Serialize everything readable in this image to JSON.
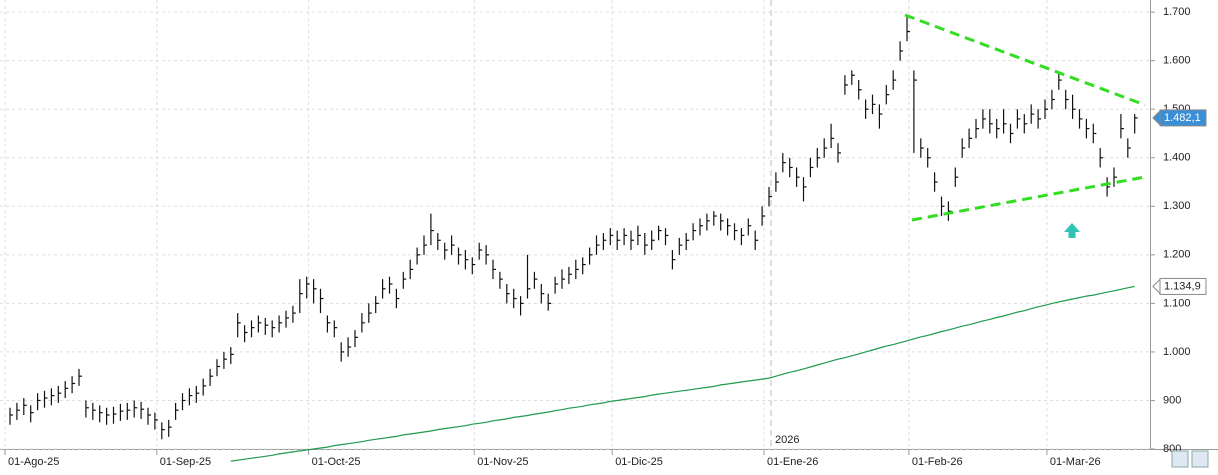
{
  "chart_data": {
    "type": "ohlc",
    "color": "#111111",
    "grid": true,
    "categories": [
      "01-Ago-25",
      null,
      null,
      null,
      null,
      null,
      null,
      null,
      null,
      null,
      null,
      null,
      null,
      null,
      null,
      null,
      null,
      null,
      null,
      null,
      null,
      null,
      "01-Sep-25",
      null,
      null,
      null,
      null,
      null,
      null,
      null,
      null,
      null,
      null,
      null,
      null,
      null,
      null,
      null,
      null,
      null,
      null,
      null,
      null,
      null,
      "01-Oct-25",
      null,
      null,
      null,
      null,
      null,
      null,
      null,
      null,
      null,
      null,
      null,
      null,
      null,
      null,
      null,
      null,
      null,
      null,
      null,
      null,
      null,
      null,
      null,
      "01-Nov-25",
      null,
      null,
      null,
      null,
      null,
      null,
      null,
      null,
      null,
      null,
      null,
      null,
      null,
      null,
      null,
      null,
      null,
      null,
      null,
      "01-Dic-25",
      null,
      null,
      null,
      null,
      null,
      null,
      null,
      null,
      null,
      null,
      null,
      null,
      null,
      null,
      null,
      null,
      null,
      null,
      null,
      null,
      null,
      "01-Ene-26",
      null,
      null,
      null,
      null,
      null,
      null,
      null,
      null,
      null,
      null,
      null,
      null,
      null,
      null,
      null,
      null,
      null,
      null,
      null,
      null,
      "01-Feb-26",
      null,
      null,
      null,
      null,
      null,
      null,
      null,
      null,
      null,
      null,
      null,
      null,
      null,
      null,
      null,
      null,
      null,
      null,
      null,
      "01-Mar-26",
      null,
      null,
      null,
      null,
      null,
      null,
      null,
      null,
      null,
      null,
      null,
      null
    ],
    "high": [
      885,
      895,
      905,
      890,
      915,
      920,
      925,
      930,
      940,
      950,
      965,
      900,
      895,
      890,
      885,
      887,
      893,
      895,
      900,
      897,
      885,
      875,
      855,
      860,
      895,
      915,
      925,
      930,
      945,
      965,
      985,
      1000,
      1010,
      1080,
      1055,
      1065,
      1075,
      1070,
      1065,
      1075,
      1085,
      1095,
      1150,
      1155,
      1150,
      1130,
      1075,
      1065,
      1020,
      1030,
      1045,
      1080,
      1100,
      1115,
      1150,
      1155,
      1130,
      1165,
      1190,
      1215,
      1240,
      1285,
      1245,
      1225,
      1240,
      1215,
      1210,
      1195,
      1225,
      1220,
      1190,
      1165,
      1140,
      1130,
      1115,
      1200,
      1165,
      1140,
      1120,
      1155,
      1170,
      1175,
      1190,
      1195,
      1215,
      1240,
      1245,
      1255,
      1250,
      1255,
      1250,
      1260,
      1245,
      1250,
      1260,
      1255,
      1210,
      1235,
      1245,
      1265,
      1275,
      1285,
      1290,
      1285,
      1275,
      1265,
      1255,
      1275,
      1250,
      1300,
      1340,
      1370,
      1410,
      1400,
      1380,
      1360,
      1400,
      1420,
      1440,
      1470,
      1430,
      1570,
      1580,
      1560,
      1520,
      1530,
      1510,
      1550,
      1580,
      1640,
      1690,
      1580,
      1440,
      1420,
      1370,
      1320,
      1310,
      1380,
      1440,
      1460,
      1480,
      1500,
      1500,
      1480,
      1500,
      1470,
      1500,
      1490,
      1510,
      1500,
      1520,
      1540,
      1575,
      1540,
      1530,
      1500,
      1480,
      1470,
      1420,
      1360,
      1380,
      1490,
      1440,
      1490
    ],
    "low": [
      850,
      860,
      870,
      855,
      880,
      885,
      890,
      895,
      905,
      915,
      930,
      865,
      860,
      855,
      850,
      852,
      858,
      860,
      865,
      862,
      850,
      840,
      820,
      825,
      860,
      880,
      890,
      895,
      910,
      930,
      950,
      965,
      975,
      1030,
      1020,
      1030,
      1040,
      1035,
      1030,
      1040,
      1050,
      1060,
      1080,
      1110,
      1100,
      1080,
      1040,
      1030,
      980,
      990,
      1010,
      1040,
      1060,
      1080,
      1110,
      1120,
      1090,
      1130,
      1150,
      1180,
      1200,
      1220,
      1210,
      1190,
      1200,
      1180,
      1170,
      1160,
      1190,
      1180,
      1150,
      1130,
      1100,
      1090,
      1075,
      1110,
      1130,
      1100,
      1085,
      1120,
      1130,
      1140,
      1150,
      1160,
      1180,
      1200,
      1210,
      1220,
      1210,
      1220,
      1210,
      1220,
      1200,
      1210,
      1230,
      1220,
      1170,
      1200,
      1210,
      1230,
      1240,
      1250,
      1260,
      1250,
      1240,
      1230,
      1220,
      1240,
      1210,
      1260,
      1300,
      1330,
      1370,
      1360,
      1340,
      1310,
      1360,
      1380,
      1400,
      1420,
      1390,
      1530,
      1550,
      1520,
      1480,
      1490,
      1460,
      1510,
      1540,
      1600,
      1640,
      1410,
      1400,
      1380,
      1330,
      1280,
      1270,
      1340,
      1400,
      1420,
      1440,
      1460,
      1450,
      1440,
      1450,
      1430,
      1460,
      1450,
      1470,
      1460,
      1480,
      1500,
      1540,
      1500,
      1480,
      1460,
      1440,
      1430,
      1380,
      1320,
      1340,
      1440,
      1400,
      1450
    ],
    "close": [
      870,
      880,
      890,
      875,
      900,
      905,
      910,
      915,
      925,
      935,
      950,
      885,
      880,
      875,
      870,
      872,
      878,
      880,
      885,
      882,
      870,
      860,
      840,
      845,
      880,
      900,
      910,
      915,
      930,
      950,
      970,
      985,
      995,
      1060,
      1040,
      1050,
      1060,
      1055,
      1050,
      1060,
      1070,
      1080,
      1120,
      1140,
      1130,
      1110,
      1060,
      1050,
      1000,
      1010,
      1030,
      1060,
      1080,
      1100,
      1130,
      1140,
      1110,
      1150,
      1170,
      1200,
      1220,
      1250,
      1230,
      1210,
      1220,
      1200,
      1190,
      1180,
      1210,
      1200,
      1170,
      1150,
      1120,
      1110,
      1100,
      1130,
      1150,
      1120,
      1100,
      1140,
      1150,
      1160,
      1170,
      1180,
      1200,
      1220,
      1230,
      1240,
      1230,
      1240,
      1230,
      1240,
      1220,
      1230,
      1250,
      1240,
      1190,
      1220,
      1230,
      1250,
      1260,
      1270,
      1280,
      1270,
      1260,
      1250,
      1240,
      1260,
      1230,
      1280,
      1320,
      1350,
      1390,
      1380,
      1360,
      1340,
      1380,
      1400,
      1420,
      1440,
      1410,
      1550,
      1570,
      1540,
      1500,
      1510,
      1490,
      1530,
      1560,
      1620,
      1660,
      1560,
      1420,
      1400,
      1350,
      1300,
      1290,
      1360,
      1420,
      1440,
      1460,
      1480,
      1470,
      1460,
      1470,
      1450,
      1480,
      1470,
      1490,
      1480,
      1500,
      1520,
      1560,
      1520,
      1500,
      1480,
      1460,
      1450,
      1400,
      1340,
      1360,
      1460,
      1420,
      1482.1
    ],
    "moving_average": {
      "color": "#1f9a4e",
      "values": [
        null,
        null,
        null,
        null,
        null,
        null,
        null,
        null,
        null,
        null,
        null,
        null,
        null,
        null,
        null,
        null,
        null,
        null,
        null,
        null,
        null,
        null,
        null,
        null,
        null,
        null,
        null,
        null,
        null,
        null,
        null,
        null,
        775,
        777,
        779,
        781,
        783,
        785,
        787,
        790,
        792,
        794,
        796,
        798,
        800,
        802,
        804,
        807,
        809,
        811,
        813,
        815,
        818,
        820,
        822,
        824,
        826,
        829,
        831,
        833,
        835,
        837,
        840,
        842,
        844,
        846,
        848,
        851,
        853,
        855,
        858,
        860,
        862,
        865,
        867,
        869,
        872,
        874,
        876,
        879,
        881,
        884,
        886,
        888,
        891,
        893,
        895,
        898,
        900,
        902,
        904,
        906,
        908,
        911,
        913,
        915,
        917,
        919,
        921,
        923,
        925,
        927,
        929,
        932,
        934,
        936,
        938,
        940,
        942,
        944,
        946,
        950,
        954,
        958,
        961,
        965,
        969,
        973,
        977,
        981,
        985,
        988,
        992,
        996,
        1000,
        1004,
        1008,
        1012,
        1015,
        1019,
        1023,
        1027,
        1031,
        1034,
        1038,
        1042,
        1045,
        1049,
        1053,
        1056,
        1060,
        1064,
        1067,
        1071,
        1074,
        1078,
        1082,
        1085,
        1089,
        1093,
        1096,
        1100,
        1103,
        1106,
        1109,
        1112,
        1115,
        1117,
        1120,
        1123,
        1126,
        1129,
        1132,
        1134.9
      ]
    },
    "ylim": [
      800,
      1725
    ],
    "yticks": [
      800,
      900,
      {
        "value": 1000,
        "label": "1.000"
      },
      {
        "value": 1100,
        "label": "1.100"
      },
      {
        "value": 1200,
        "label": "1.200"
      },
      {
        "value": 1300,
        "label": "1.300"
      },
      {
        "value": 1400,
        "label": "1.400"
      },
      {
        "value": 1500,
        "label": "1.500"
      },
      {
        "value": 1600,
        "label": "1.600"
      },
      {
        "value": 1700,
        "label": "1.700"
      }
    ],
    "price_labels": [
      {
        "value": 1482.1,
        "label": "1.482,1",
        "color": "#3a8fd6"
      },
      {
        "value": 1134.9,
        "label": "1.134,9",
        "color": "#ffffff"
      }
    ],
    "year_marker": "2026"
  }
}
